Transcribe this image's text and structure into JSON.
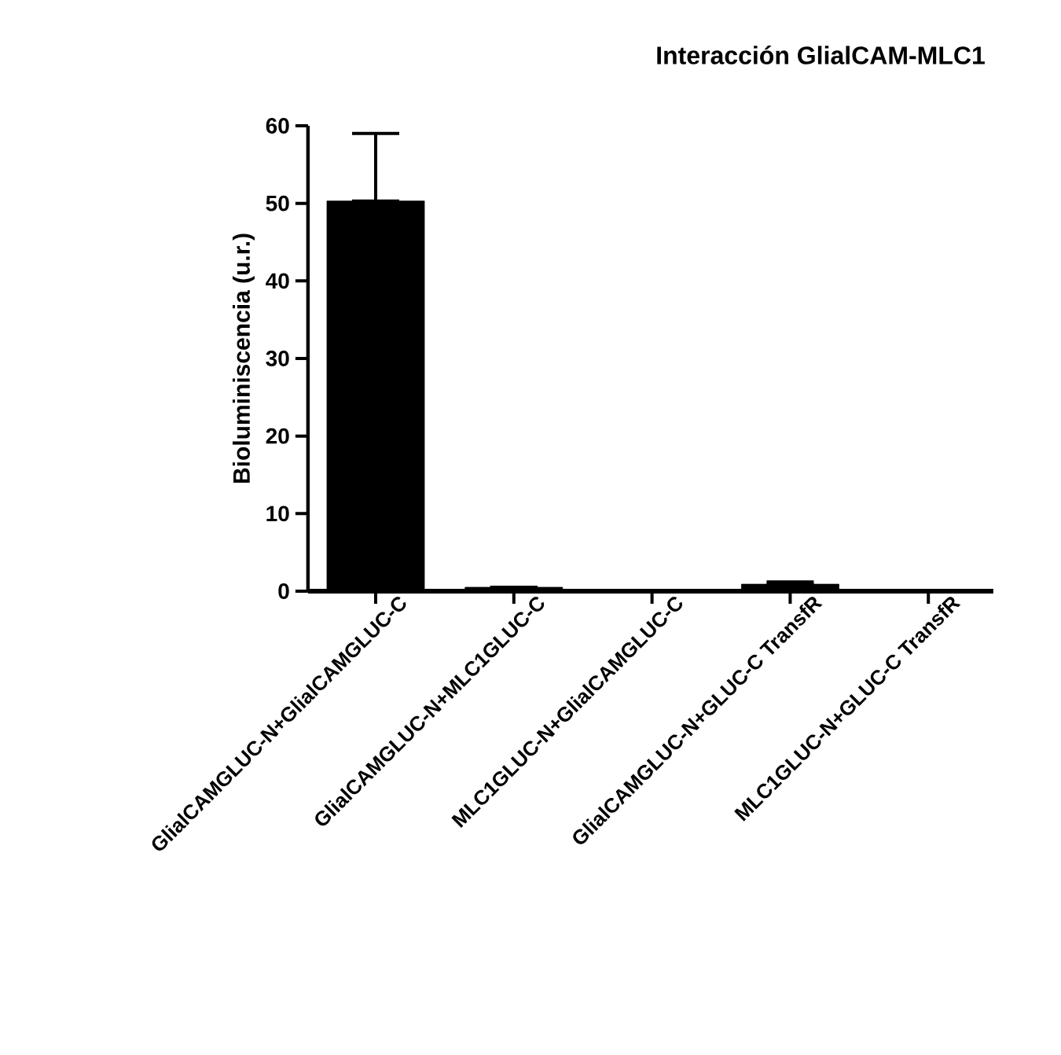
{
  "chart_data": {
    "type": "bar",
    "title": "Interacción GlialCAM-MLC1",
    "ylabel": "Bioluminiscencia  (u.r.)",
    "categories": [
      "GlialCAMGLUC-N+GlialCAMGLUC-C",
      "GlialCAMGLUC-N+MLC1GLUC-C",
      "MLC1GLUC-N+GlialCAMGLUC-C",
      "GlialCAMGLUC-N+GLUC-C TransfR",
      "MLC1GLUC-N+GLUC-C TransfR"
    ],
    "values": [
      50.3,
      0.5,
      0.1,
      0.9,
      0.1
    ],
    "errors": [
      [
        50.3,
        59
      ],
      null,
      null,
      [
        0.9,
        1.2
      ],
      null
    ],
    "color": "#000000",
    "ylim": [
      0,
      60
    ],
    "yticks": [
      0,
      10,
      20,
      30,
      40,
      50,
      60
    ],
    "grid": false
  }
}
